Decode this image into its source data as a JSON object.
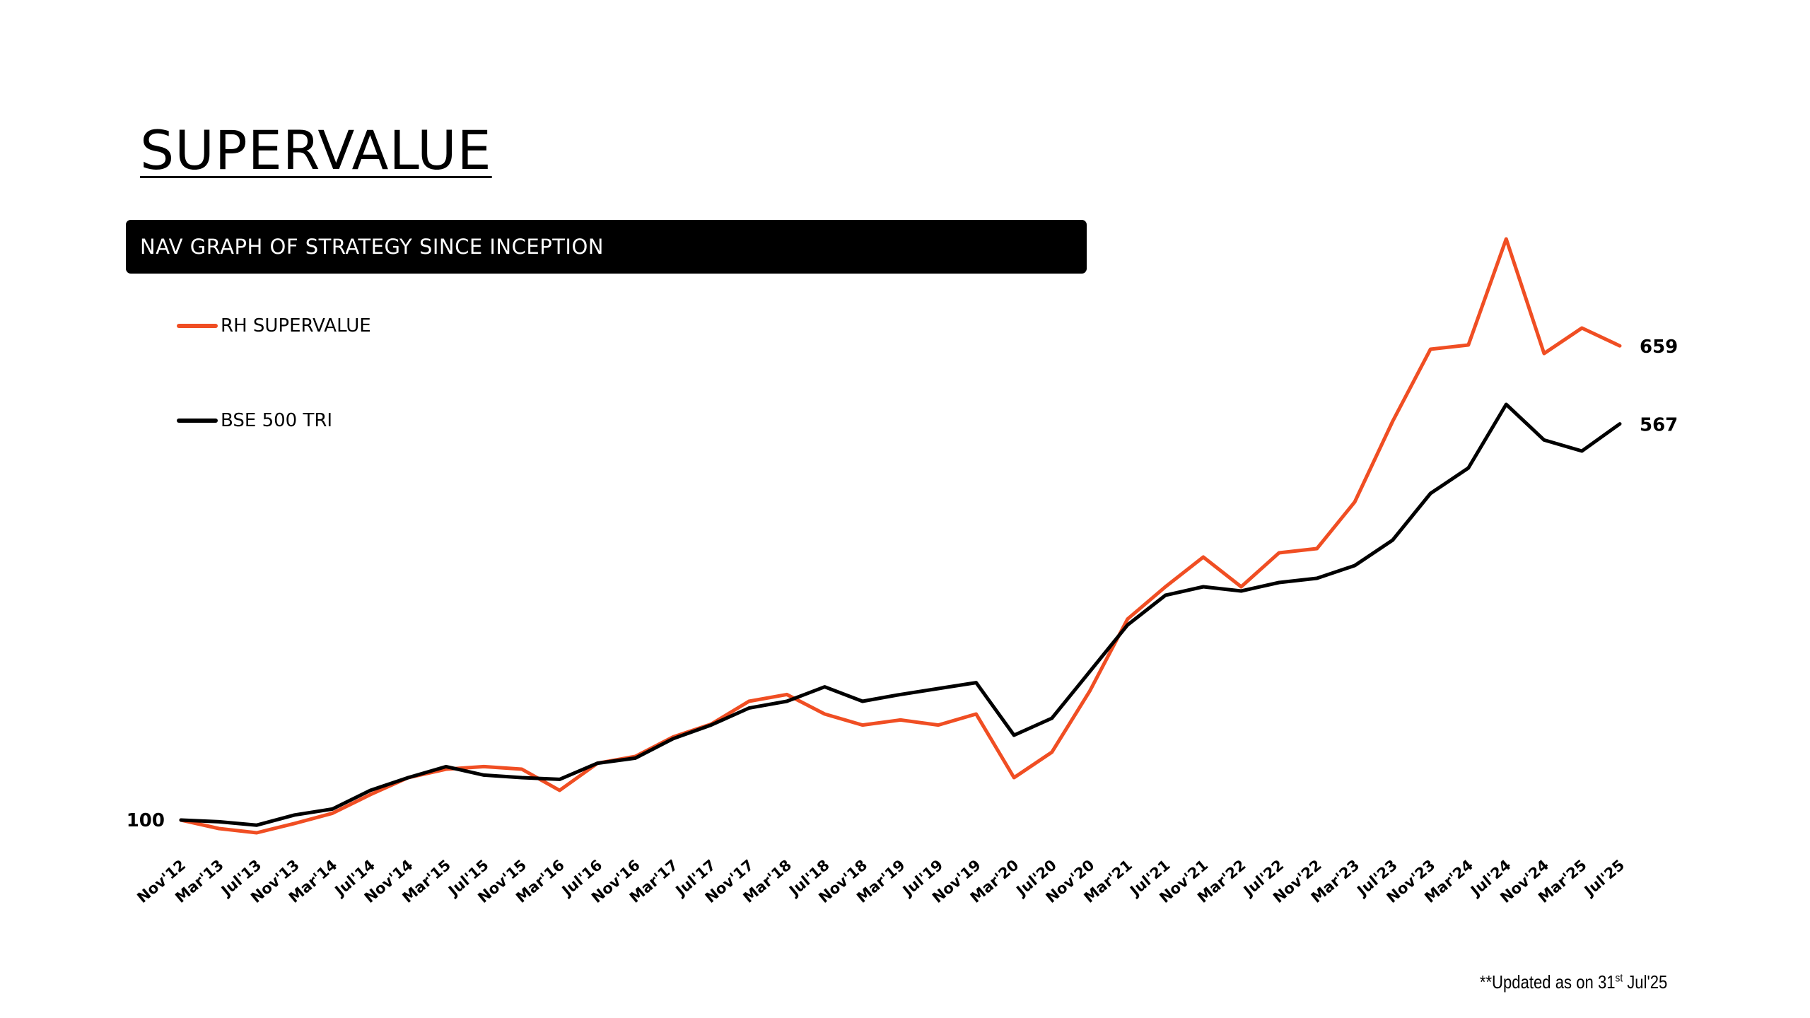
{
  "page": {
    "title": "SUPERVALUE",
    "banner": "NAV GRAPH OF STRATEGY SINCE INCEPTION",
    "footnote_prefix": "**Updated as on 31",
    "footnote_sup": "st",
    "footnote_suffix": " Jul'25"
  },
  "chart_data": {
    "type": "line",
    "title": "",
    "xlabel": "",
    "ylabel": "",
    "ylim": [
      0,
      800
    ],
    "grid": false,
    "legend_position": "top-left",
    "categories": [
      "Nov'12",
      "Mar'13",
      "Jul'13",
      "Nov'13",
      "Mar'14",
      "Jul'14",
      "Nov'14",
      "Mar'15",
      "Jul'15",
      "Nov'15",
      "Mar'16",
      "Jul'16",
      "Nov'16",
      "Mar'17",
      "Jul'17",
      "Nov'17",
      "Mar'18",
      "Jul'18",
      "Nov'18",
      "Mar'19",
      "Jul'19",
      "Nov'19",
      "Mar'20",
      "Jul'20",
      "Nov'20",
      "Mar'21",
      "Jul'21",
      "Nov'21",
      "Mar'22",
      "Jul'22",
      "Nov'22",
      "Mar'23",
      "Jul'23",
      "Nov'23",
      "Mar'24",
      "Jul'24",
      "Nov'24",
      "Mar'25",
      "Jul'25"
    ],
    "series": [
      {
        "name": "RH SUPERVALUE",
        "color": "#f04e23",
        "values": [
          100,
          90,
          85,
          96,
          108,
          130,
          150,
          160,
          163,
          160,
          135,
          167,
          175,
          198,
          213,
          240,
          248,
          225,
          212,
          218,
          212,
          225,
          150,
          180,
          252,
          337,
          375,
          410,
          375,
          415,
          420,
          475,
          570,
          655,
          660,
          785,
          650,
          680,
          659
        ],
        "end_label": "659"
      },
      {
        "name": "BSE 500 TRI",
        "color": "#000000",
        "values": [
          100,
          98,
          94,
          106,
          113,
          135,
          150,
          163,
          153,
          150,
          148,
          167,
          173,
          196,
          212,
          232,
          240,
          257,
          240,
          248,
          255,
          262,
          200,
          220,
          275,
          330,
          365,
          375,
          370,
          380,
          385,
          400,
          430,
          485,
          515,
          590,
          548,
          535,
          567
        ],
        "end_label": "567"
      }
    ],
    "start_label": "100"
  }
}
